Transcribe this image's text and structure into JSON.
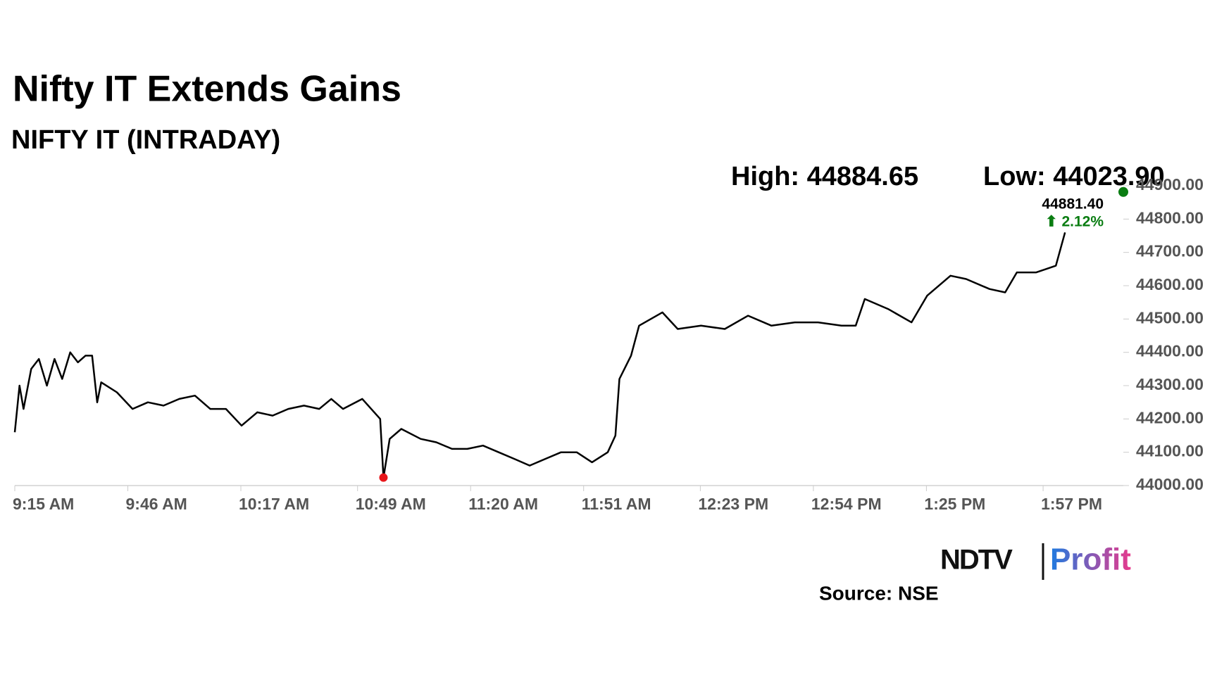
{
  "chart_data": {
    "type": "line",
    "title": "Nifty IT Extends Gains",
    "subtitle": "NIFTY IT (INTRADAY)",
    "high_label": "High: 44884.65",
    "low_label": "Low: 44023.90",
    "source": "Source: NSE",
    "logo": {
      "left": "NDTV",
      "right": "Profit"
    },
    "color": "#000000",
    "x": [
      0,
      1.3,
      2.4,
      4.5,
      6.6,
      8.8,
      10.9,
      13,
      15.2,
      17.3,
      19.4,
      21.2,
      22.6,
      23.7,
      28,
      32.3,
      36.5,
      40.8,
      45.1,
      49.4,
      53.6,
      57.9,
      62.2,
      66.5,
      70.7,
      75,
      79.3,
      83.5,
      86.8,
      90,
      95.3,
      100.2,
      101.1,
      102.8,
      106,
      111.3,
      115.6,
      119.9,
      124.1,
      128.4,
      132.7,
      137,
      141.2,
      145.5,
      149.8,
      154.1,
      158.3,
      162.6,
      164.7,
      165.8,
      169,
      171.2,
      177.6,
      181.8,
      188.2,
      194.7,
      201.1,
      207.5,
      213.9,
      220.3,
      226.7,
      230.6,
      233.1,
      239.5,
      245.9,
      250.2,
      256.6,
      260.9,
      267.3,
      271.6,
      274.8,
      280.1,
      285.5,
      288
    ],
    "values": [
      44160,
      44300,
      44230,
      44350,
      44380,
      44300,
      44380,
      44320,
      44400,
      44370,
      44390,
      44390,
      44250,
      44310,
      44280,
      44230,
      44250,
      44240,
      44260,
      44270,
      44230,
      44230,
      44180,
      44220,
      44210,
      44230,
      44240,
      44230,
      44260,
      44230,
      44260,
      44200,
      44023.9,
      44140,
      44170,
      44140,
      44130,
      44110,
      44110,
      44120,
      44100,
      44080,
      44060,
      44080,
      44100,
      44100,
      44070,
      44100,
      44150,
      44320,
      44390,
      44480,
      44520,
      44470,
      44480,
      44470,
      44510,
      44480,
      44490,
      44490,
      44480,
      44480,
      44560,
      44530,
      44490,
      44570,
      44630,
      44620,
      44590,
      44580,
      44640,
      44640,
      44660,
      44760
    ],
    "low_point": {
      "x": 101.1,
      "value": 44023.9,
      "color": "#e8161b"
    },
    "last_point": {
      "x": 304,
      "value": 44881.4,
      "label": "44881.40",
      "change": "⬆ 2.12%",
      "color": "#0a7d12"
    },
    "xlim": [
      0,
      304
    ],
    "xticks": [
      {
        "value": 0,
        "label": "9:15 AM"
      },
      {
        "value": 31,
        "label": "9:46 AM"
      },
      {
        "value": 62,
        "label": "10:17 AM"
      },
      {
        "value": 94,
        "label": "10:49 AM"
      },
      {
        "value": 125,
        "label": "11:20 AM"
      },
      {
        "value": 156,
        "label": "11:51 AM"
      },
      {
        "value": 188,
        "label": "12:23 PM"
      },
      {
        "value": 219,
        "label": "12:54 PM"
      },
      {
        "value": 250,
        "label": "1:25 PM"
      },
      {
        "value": 282,
        "label": "1:57 PM"
      }
    ],
    "ylim": [
      44000,
      44900
    ],
    "yticks": [
      {
        "value": 44000,
        "label": "44000.00"
      },
      {
        "value": 44100,
        "label": "44100.00"
      },
      {
        "value": 44200,
        "label": "44200.00"
      },
      {
        "value": 44300,
        "label": "44300.00"
      },
      {
        "value": 44400,
        "label": "44400.00"
      },
      {
        "value": 44500,
        "label": "44500.00"
      },
      {
        "value": 44600,
        "label": "44600.00"
      },
      {
        "value": 44700,
        "label": "44700.00"
      },
      {
        "value": 44800,
        "label": "44800.00"
      },
      {
        "value": 44900,
        "label": "44900.00"
      }
    ]
  }
}
